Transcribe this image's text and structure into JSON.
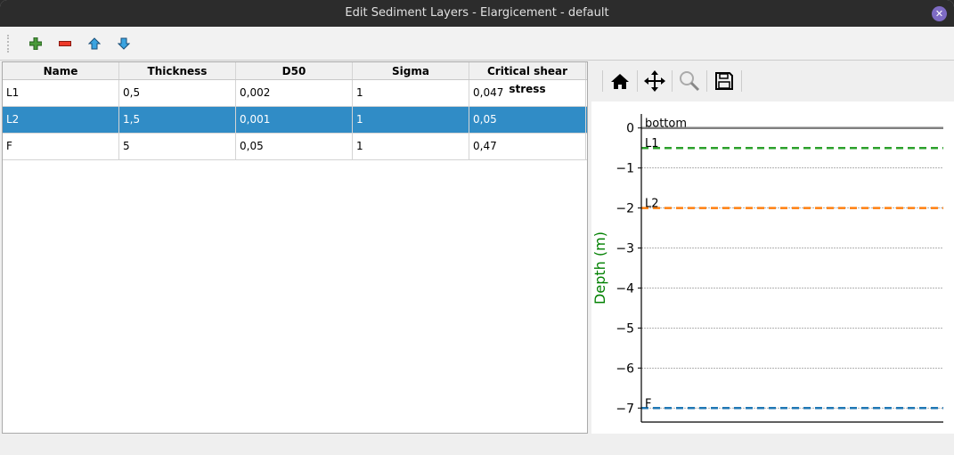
{
  "window": {
    "title": "Edit Sediment Layers - Elargicement - default"
  },
  "toolbar": {
    "icons": [
      "add-icon",
      "remove-icon",
      "move-up-icon",
      "move-down-icon"
    ]
  },
  "table": {
    "columns": [
      "Name",
      "Thickness",
      "D50",
      "Sigma",
      "Critical shear stress"
    ],
    "rows": [
      [
        "L1",
        "0,5",
        "0,002",
        "1",
        "0,047"
      ],
      [
        "L2",
        "1,5",
        "0,001",
        "1",
        "0,05"
      ],
      [
        "F",
        "5",
        "0,05",
        "1",
        "0,47"
      ]
    ],
    "selected_row": 1,
    "selection_color": "#308cc6"
  },
  "plot_toolbar": {
    "icons": [
      "home-icon",
      "pan-icon",
      "zoom-icon",
      "save-icon"
    ]
  },
  "chart_data": {
    "type": "line",
    "ylabel": "Depth (m)",
    "ylabel_color": "#008000",
    "ylim": [
      -7.35,
      0.35
    ],
    "yticks": [
      "0",
      "−1",
      "−2",
      "−3",
      "−4",
      "−5",
      "−6",
      "−7"
    ],
    "ytick_values": [
      0,
      -1,
      -2,
      -3,
      -4,
      -5,
      -6,
      -7
    ],
    "grid": "horizontal dotted",
    "lines": [
      {
        "label": "bottom",
        "y": 0,
        "color": "#808080",
        "style": "solid"
      },
      {
        "label": "L1",
        "y": -0.5,
        "color": "#2ca02c",
        "style": "dashed"
      },
      {
        "label": "L2",
        "y": -2,
        "color": "#ff7f0e",
        "style": "dashed"
      },
      {
        "label": "F",
        "y": -7,
        "color": "#1f77b4",
        "style": "dashed"
      }
    ]
  }
}
